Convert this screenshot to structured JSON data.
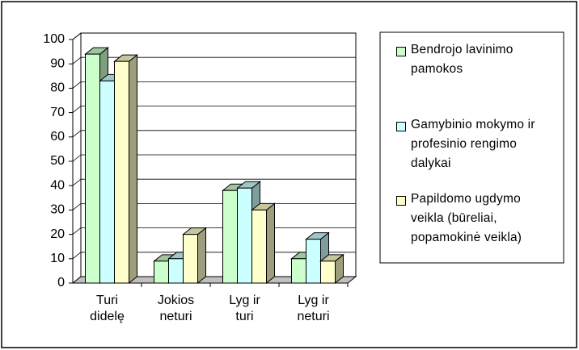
{
  "chart_data": {
    "type": "bar3d",
    "categories": [
      "Turi didelę",
      "Jokios neturi",
      "Lyg ir turi",
      "Lyg ir neturi"
    ],
    "series": [
      {
        "name": "Bendrojo lavinimo pamokos",
        "color": "#ccffcc",
        "values": [
          94,
          9,
          38,
          10
        ]
      },
      {
        "name": "Gamybinio mokymo ir profesinio rengimo dalykai",
        "color": "#ccffff",
        "values": [
          83,
          10,
          39,
          18
        ]
      },
      {
        "name": "Papildomo ugdymo veikla (būreliai, popamokinė veikla)",
        "color": "#ffffcc",
        "values": [
          91,
          20,
          30,
          9
        ]
      }
    ],
    "ylim": [
      0,
      100
    ],
    "yticks": [
      0,
      10,
      20,
      30,
      40,
      50,
      60,
      70,
      80,
      90,
      100
    ],
    "grid": true,
    "legend": "right"
  }
}
